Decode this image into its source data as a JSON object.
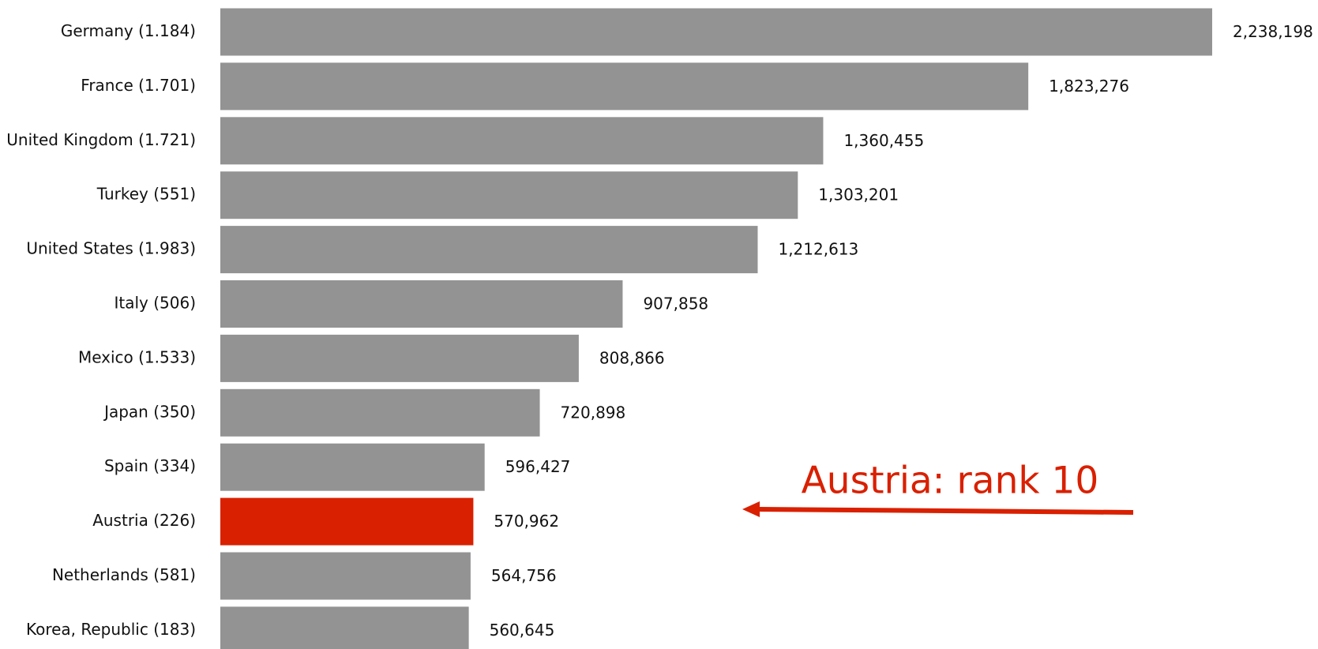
{
  "chart_data": {
    "type": "bar",
    "orientation": "horizontal",
    "categories": [
      "Germany (1.184)",
      "France (1.701)",
      "United Kingdom (1.721)",
      "Turkey (551)",
      "United States (1.983)",
      "Italy (506)",
      "Mexico (1.533)",
      "Japan (350)",
      "Spain (334)",
      "Austria (226)",
      "Netherlands (581)",
      "Korea, Republic (183)"
    ],
    "values": [
      2238198,
      1823276,
      1360455,
      1303201,
      1212613,
      907858,
      808866,
      720898,
      596427,
      570962,
      564756,
      560645
    ],
    "value_labels": [
      "2,238,198",
      "1,823,276",
      "1,360,455",
      "1,303,201",
      "1,212,613",
      "907,858",
      "808,866",
      "720,898",
      "596,427",
      "570,962",
      "564,756",
      "560,645"
    ],
    "colors": [
      "#939393",
      "#939393",
      "#939393",
      "#939393",
      "#939393",
      "#939393",
      "#939393",
      "#939393",
      "#939393",
      "#d92000",
      "#939393",
      "#939393"
    ],
    "annotation": "Austria: rank 10"
  }
}
